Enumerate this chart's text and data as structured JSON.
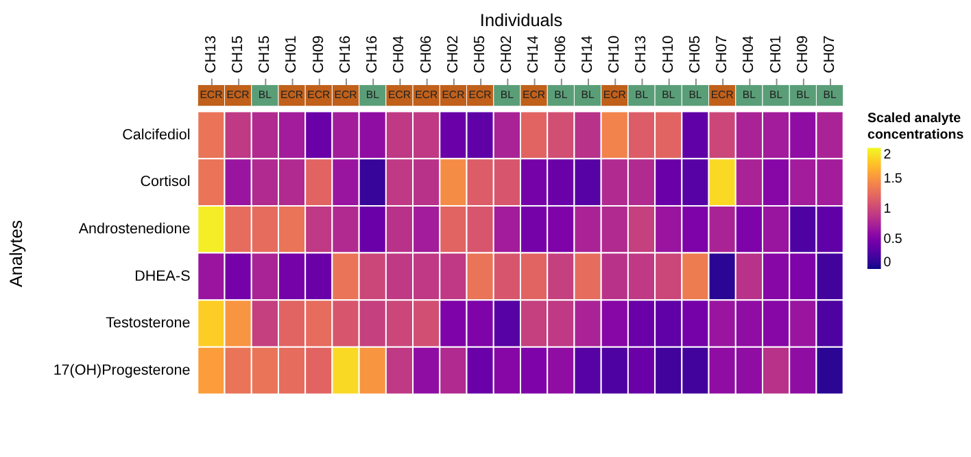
{
  "chart_data": [
    {
      "type": "other",
      "cell_labels": [
        [
          "ECR",
          "ECR",
          "BL",
          "ECR",
          "ECR",
          "ECR",
          "BL",
          "ECR",
          "ECR",
          "ECR",
          "ECR",
          "BL",
          "ECR",
          "BL",
          "BL",
          "ECR",
          "BL",
          "BL",
          "BL",
          "ECR",
          "BL",
          "BL",
          "BL",
          "BL"
        ]
      ],
      "colors": [
        "#c0601a",
        "#c0601a",
        "#5a9e78",
        "#c0601a",
        "#c0601a",
        "#c0601a",
        "#5a9e78",
        "#c0601a",
        "#c0601a",
        "#c0601a",
        "#c0601a",
        "#5a9e78",
        "#c0601a",
        "#5a9e78",
        "#5a9e78",
        "#c0601a",
        "#5a9e78",
        "#5a9e78",
        "#5a9e78",
        "#c0601a",
        "#5a9e78",
        "#5a9e78",
        "#5a9e78",
        "#5a9e78"
      ]
    },
    {
      "type": "heatmap",
      "xlabel": "Individuals",
      "ylabel": "Analytes",
      "clabel": "Scaled analyte concentrations",
      "categories": [
        "CH13",
        "CH15",
        "CH15",
        "CH01",
        "CH09",
        "CH16",
        "CH16",
        "CH04",
        "CH06",
        "CH02",
        "CH05",
        "CH02",
        "CH14",
        "CH06",
        "CH14",
        "CH10",
        "CH13",
        "CH10",
        "CH05",
        "CH07",
        "CH04",
        "CH01",
        "CH09",
        "CH07"
      ],
      "y_categories": [
        "Calcifediol",
        "Cortisol",
        "Androstenedione",
        "DHEA-S",
        "Testosterone",
        "17(OH)Progesterone"
      ],
      "cells": [
        [
          1.3,
          0.9,
          0.8,
          0.7,
          0.4,
          0.7,
          0.6,
          0.9,
          0.9,
          0.4,
          0.35,
          0.75,
          1.2,
          1.05,
          0.85,
          1.4,
          1.15,
          1.2,
          0.35,
          1.0,
          0.75,
          0.7,
          0.6,
          0.75
        ],
        [
          1.3,
          0.65,
          0.8,
          0.8,
          1.2,
          0.65,
          0.15,
          0.9,
          0.85,
          1.45,
          1.15,
          1.1,
          0.45,
          0.4,
          0.3,
          0.8,
          0.8,
          0.4,
          0.3,
          1.85,
          0.75,
          0.55,
          0.7,
          0.7
        ],
        [
          1.95,
          1.25,
          1.25,
          1.3,
          0.9,
          0.8,
          0.4,
          0.85,
          0.7,
          1.2,
          1.1,
          0.7,
          0.45,
          0.5,
          0.75,
          0.8,
          0.95,
          0.65,
          0.5,
          0.75,
          0.5,
          0.65,
          0.25,
          0.35
        ],
        [
          0.65,
          0.45,
          0.75,
          0.45,
          0.4,
          1.3,
          1.0,
          0.9,
          0.9,
          0.9,
          1.3,
          1.1,
          1.2,
          0.95,
          1.25,
          0.85,
          0.9,
          1.0,
          1.35,
          0.1,
          0.85,
          0.55,
          0.5,
          0.2
        ],
        [
          1.8,
          1.5,
          0.95,
          1.2,
          1.25,
          1.1,
          0.95,
          1.0,
          1.05,
          0.5,
          0.5,
          0.3,
          0.95,
          0.9,
          0.75,
          0.55,
          0.4,
          0.35,
          0.45,
          0.65,
          0.6,
          0.55,
          0.65,
          0.25
        ],
        [
          1.55,
          1.3,
          1.3,
          1.25,
          1.2,
          1.85,
          1.5,
          0.9,
          0.6,
          0.8,
          0.4,
          0.55,
          0.5,
          0.6,
          0.3,
          0.25,
          0.4,
          0.2,
          0.2,
          0.6,
          0.6,
          0.85,
          0.6,
          0.1
        ]
      ],
      "clim": [
        0,
        2
      ],
      "cticks": [
        0,
        0.5,
        1,
        1.5,
        2
      ]
    }
  ]
}
